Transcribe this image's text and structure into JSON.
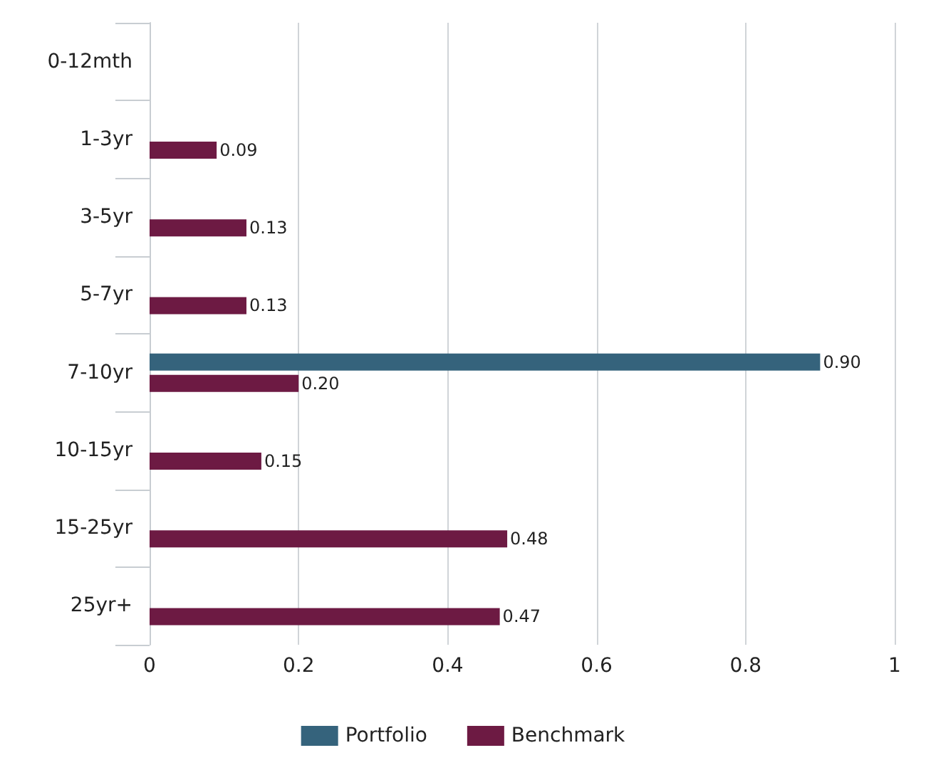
{
  "chart_data": {
    "type": "bar",
    "orientation": "horizontal",
    "categories": [
      "0-12mth",
      "1-3yr",
      "3-5yr",
      "5-7yr",
      "7-10yr",
      "10-15yr",
      "15-25yr",
      "25yr+"
    ],
    "series": [
      {
        "name": "Portfolio",
        "color": "#35637c",
        "values": [
          null,
          null,
          null,
          null,
          0.9,
          null,
          null,
          null
        ],
        "value_labels": [
          null,
          null,
          null,
          null,
          "0.90",
          null,
          null,
          null
        ]
      },
      {
        "name": "Benchmark",
        "color": "#6d1a43",
        "values": [
          null,
          0.09,
          0.13,
          0.13,
          0.2,
          0.15,
          0.48,
          0.47
        ],
        "value_labels": [
          null,
          "0.09",
          "0.13",
          "0.13",
          "0.20",
          "0.15",
          "0.48",
          "0.47"
        ]
      }
    ],
    "xlim": [
      0,
      1
    ],
    "xticks": [
      0,
      0.2,
      0.4,
      0.6,
      0.8,
      1
    ],
    "grid": "x",
    "legend": "bottom"
  }
}
